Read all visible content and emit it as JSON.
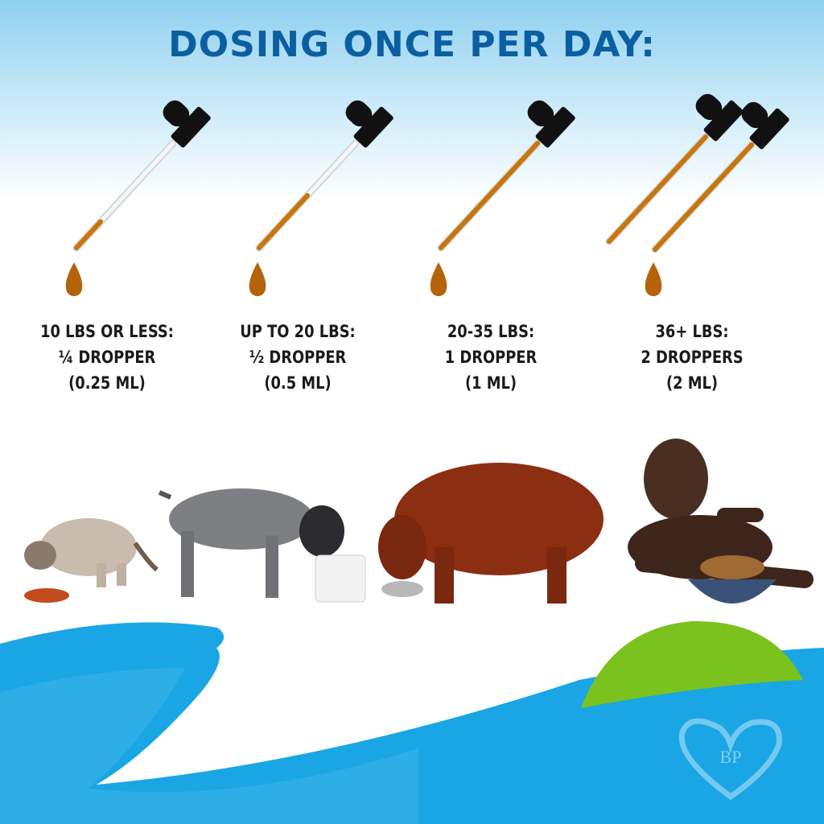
{
  "title": "DOSING ONCE PER DAY:",
  "doses": [
    {
      "weight": "10 LBS OR LESS:",
      "amount": "¼ DROPPER",
      "volume": "(0.25 ML)",
      "droppers": 1,
      "fill": 0.25
    },
    {
      "weight": "UP TO 20 LBS:",
      "amount": "½ DROPPER",
      "volume": "(0.5 ML)",
      "droppers": 1,
      "fill": 0.5
    },
    {
      "weight": "20-35 LBS:",
      "amount": "1 DROPPER",
      "volume": "(1 ML)",
      "droppers": 1,
      "fill": 1
    },
    {
      "weight": "36+ LBS:",
      "amount": "2 DROPPERS",
      "volume": "(2 ML)",
      "droppers": 2,
      "fill": 1
    }
  ],
  "logo": {
    "text": "BP",
    "icon": "heart-cat-dog-logo"
  },
  "colors": {
    "title": "#0b5fa0",
    "oil": "#c8750a",
    "wave_blue": "#1aa6e4",
    "green": "#7cc21e"
  }
}
